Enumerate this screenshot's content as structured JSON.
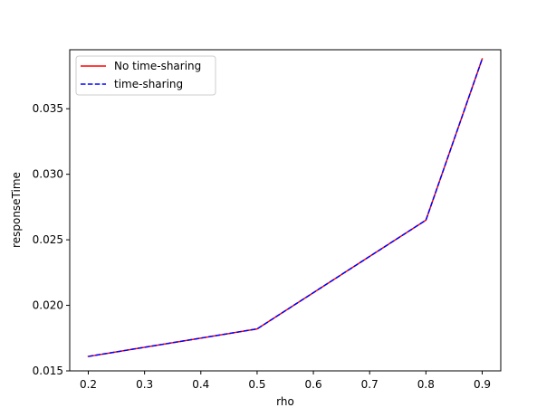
{
  "chart_data": {
    "type": "line",
    "title": "",
    "xlabel": "rho",
    "ylabel": "responseTime",
    "x": [
      0.2,
      0.5,
      0.8,
      0.9
    ],
    "xlim": [
      0.167,
      0.933
    ],
    "ylim": [
      0.015,
      0.0395
    ],
    "xticks": [
      "0.2",
      "0.3",
      "0.4",
      "0.5",
      "0.6",
      "0.7",
      "0.8",
      "0.9"
    ],
    "yticks": [
      "0.015",
      "0.020",
      "0.025",
      "0.030",
      "0.035"
    ],
    "grid": false,
    "legend_position": "upper-left",
    "series": [
      {
        "name": "No time-sharing",
        "color": "#ff0000",
        "style": "solid",
        "values": [
          0.0161,
          0.0182,
          0.0265,
          0.0388
        ]
      },
      {
        "name": "time-sharing",
        "color": "#0000ff",
        "style": "dashed",
        "values": [
          0.0161,
          0.0182,
          0.0265,
          0.0388
        ]
      }
    ]
  }
}
